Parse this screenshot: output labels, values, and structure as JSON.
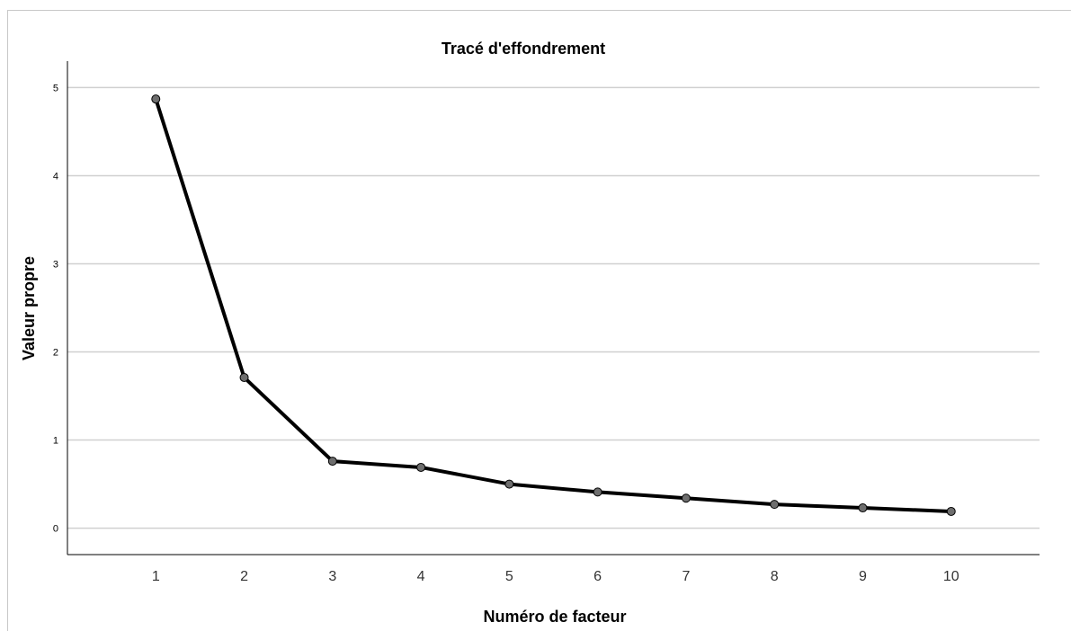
{
  "chart_data": {
    "type": "line",
    "title": "Tracé d'effondrement",
    "xlabel": "Numéro de facteur",
    "ylabel": "Valeur propre",
    "x": [
      1,
      2,
      3,
      4,
      5,
      6,
      7,
      8,
      9,
      10
    ],
    "series": [
      {
        "values": [
          4.87,
          1.71,
          0.76,
          0.69,
          0.5,
          0.41,
          0.34,
          0.27,
          0.23,
          0.19
        ]
      }
    ],
    "yticks": [
      "0",
      "1",
      "2",
      "3",
      "4",
      "5"
    ],
    "xticks": [
      "1",
      "2",
      "3",
      "4",
      "5",
      "6",
      "7",
      "8",
      "9",
      "10"
    ],
    "ylim": [
      -0.3,
      5.3
    ],
    "xlim": [
      0,
      11
    ],
    "grid": true,
    "legend": "none",
    "colors": {
      "line": "#000000",
      "marker": "#6e6e6e",
      "grid": "#d0d0d0"
    }
  }
}
